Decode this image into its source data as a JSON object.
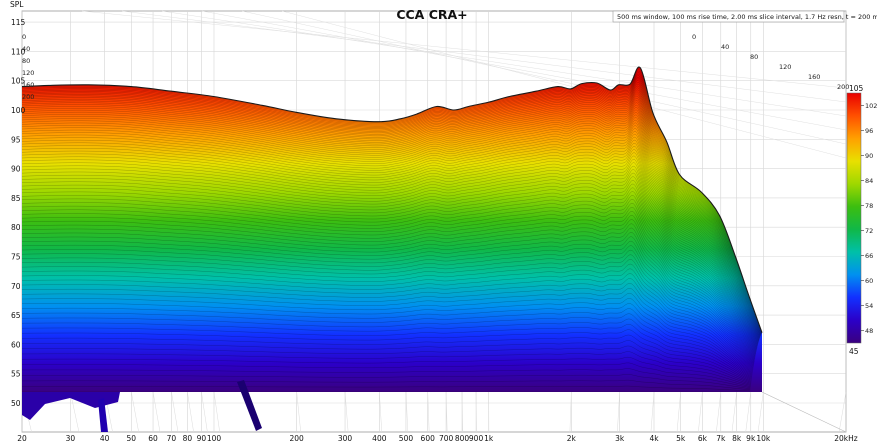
{
  "chart_data": {
    "type": "waterfall-3d",
    "title": "CCA CRA+",
    "annotation": "500 ms window, 100 ms rise time, 2.00 ms slice interval, 1.7 Hz resn, t = 200 ms",
    "ylabel": "SPL",
    "ylim": [
      47,
      117
    ],
    "yticks": [
      "50",
      "55",
      "60",
      "65",
      "70",
      "75",
      "80",
      "85",
      "90",
      "95",
      "100",
      "105",
      "110",
      "115"
    ],
    "xlim": [
      20,
      20000
    ],
    "xscale": "log",
    "xticks": [
      {
        "f": 20,
        "label": "20"
      },
      {
        "f": 30,
        "label": "30"
      },
      {
        "f": 40,
        "label": "40"
      },
      {
        "f": 50,
        "label": "50"
      },
      {
        "f": 60,
        "label": "60"
      },
      {
        "f": 70,
        "label": "70"
      },
      {
        "f": 80,
        "label": "80"
      },
      {
        "f": 90,
        "label": "90"
      },
      {
        "f": 100,
        "label": "100"
      },
      {
        "f": 200,
        "label": "200"
      },
      {
        "f": 300,
        "label": "300"
      },
      {
        "f": 400,
        "label": "400"
      },
      {
        "f": 500,
        "label": "500"
      },
      {
        "f": 600,
        "label": "600"
      },
      {
        "f": 700,
        "label": "700"
      },
      {
        "f": 800,
        "label": "800"
      },
      {
        "f": 900,
        "label": "900"
      },
      {
        "f": 1000,
        "label": "1k"
      },
      {
        "f": 2000,
        "label": "2k"
      },
      {
        "f": 3000,
        "label": "3k"
      },
      {
        "f": 4000,
        "label": "4k"
      },
      {
        "f": 5000,
        "label": "5k"
      },
      {
        "f": 6000,
        "label": "6k"
      },
      {
        "f": 7000,
        "label": "7k"
      },
      {
        "f": 8000,
        "label": "8k"
      },
      {
        "f": 9000,
        "label": "9k"
      },
      {
        "f": 10000,
        "label": "10k"
      },
      {
        "f": 20000,
        "label": "20kHz"
      }
    ],
    "time_axis": {
      "labels": [
        "0",
        "40",
        "80",
        "120",
        "160",
        "200"
      ],
      "unit": "ms",
      "range": [
        0,
        200
      ]
    },
    "colorbar": {
      "min_label": "45",
      "max_label": "105",
      "ticks": [
        "102",
        "96",
        "90",
        "84",
        "78",
        "72",
        "66",
        "60",
        "54",
        "48"
      ],
      "range": [
        45,
        105
      ]
    },
    "series": [
      {
        "x": [
          20,
          25,
          35,
          50,
          70,
          100,
          150,
          200,
          280,
          400,
          480,
          550,
          650,
          750,
          850,
          1000,
          1200,
          1500,
          1800,
          2000,
          2200,
          2500,
          2800,
          3000,
          3300,
          3600,
          4000,
          4500,
          5000,
          6000,
          7000,
          8000,
          9000,
          10000
        ],
        "values": [
          104,
          104.2,
          104.3,
          104.0,
          103.2,
          102.3,
          100.8,
          99.6,
          98.5,
          98.0,
          98.5,
          99.3,
          100.6,
          100.0,
          100.6,
          101.3,
          102.3,
          103.2,
          104.0,
          103.6,
          104.5,
          104.6,
          103.4,
          104.3,
          104.4,
          107.2,
          99.5,
          94.5,
          89.0,
          86.0,
          82.0,
          75.0,
          68.0,
          62.0
        ]
      }
    ],
    "colors": {
      "colormap": [
        "#3a007f",
        "#2b00c8",
        "#1230ff",
        "#0090f0",
        "#00c0a8",
        "#10b848",
        "#3cbe10",
        "#9fd800",
        "#e8e000",
        "#ffa000",
        "#ff5000",
        "#e80000"
      ]
    }
  }
}
